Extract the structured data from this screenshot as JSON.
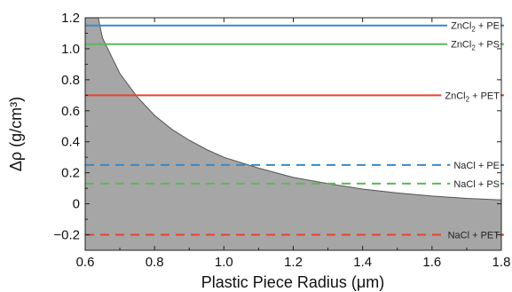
{
  "chart_data": {
    "type": "line",
    "xlabel": "Plastic Piece Radius (μm)",
    "ylabel": "Δρ (g/cm³)",
    "xlim": [
      0.6,
      1.8
    ],
    "ylim": [
      -0.3,
      1.2
    ],
    "x_ticks": [
      "0.6",
      "0.8",
      "1.0",
      "1.2",
      "1.4",
      "1.6",
      "1.8"
    ],
    "y_ticks": [
      "−0.2",
      "0",
      "0.2",
      "0.4",
      "0.6",
      "0.8",
      "1.0",
      "1.2"
    ],
    "boundary_curve": {
      "fill": "#a6a6a6",
      "x": [
        0.6,
        0.65,
        0.7,
        0.75,
        0.8,
        0.85,
        0.9,
        0.95,
        1.0,
        1.1,
        1.2,
        1.3,
        1.4,
        1.5,
        1.6,
        1.7,
        1.8
      ],
      "y": [
        1.6,
        1.07,
        0.84,
        0.69,
        0.57,
        0.48,
        0.41,
        0.35,
        0.3,
        0.23,
        0.17,
        0.13,
        0.095,
        0.07,
        0.05,
        0.035,
        0.025
      ]
    },
    "series": [
      {
        "name": "ZnCl₂ + PE",
        "name_parts": [
          "ZnCl",
          "2",
          " + PE"
        ],
        "value": 1.15,
        "color": "#3a88c5",
        "style": "solid"
      },
      {
        "name": "ZnCl₂ + PS",
        "name_parts": [
          "ZnCl",
          "2",
          " + PS"
        ],
        "value": 1.03,
        "color": "#5cb85c",
        "style": "solid"
      },
      {
        "name": "ZnCl₂ + PET",
        "name_parts": [
          "ZnCl",
          "2",
          " + PET"
        ],
        "value": 0.7,
        "color": "#e8432e",
        "style": "solid"
      },
      {
        "name": "NaCl + PE",
        "name_parts": [
          "NaCl + PE",
          "",
          ""
        ],
        "value": 0.25,
        "color": "#3a88c5",
        "style": "dashed"
      },
      {
        "name": "NaCl + PS",
        "name_parts": [
          "NaCl + PS",
          "",
          ""
        ],
        "value": 0.13,
        "color": "#5cb85c",
        "style": "dashed"
      },
      {
        "name": "NaCl + PET",
        "name_parts": [
          "NaCl + PET",
          "",
          ""
        ],
        "value": -0.2,
        "color": "#e8432e",
        "style": "dashed"
      }
    ]
  }
}
